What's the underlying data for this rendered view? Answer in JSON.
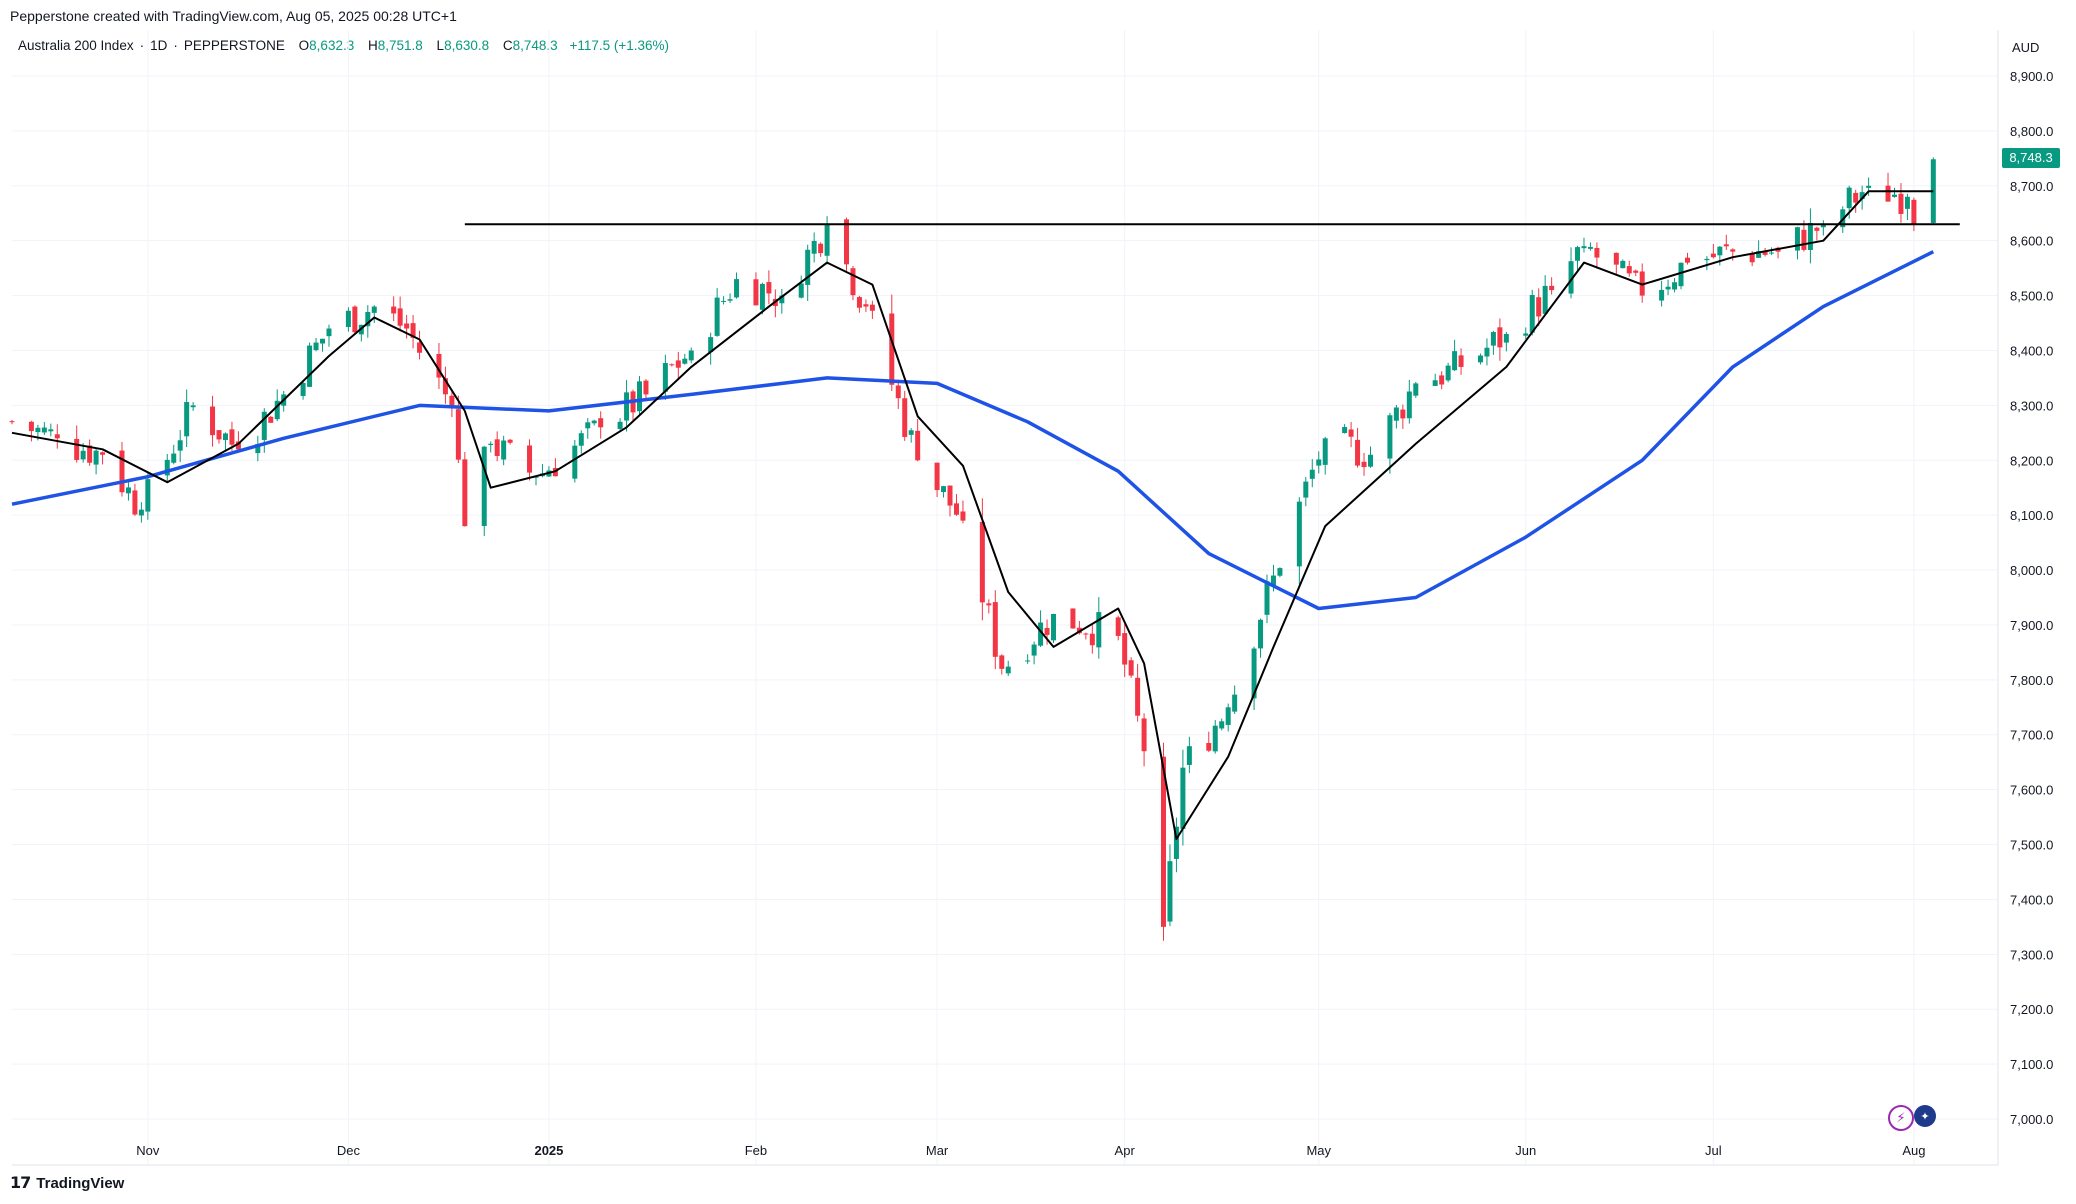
{
  "header": {
    "title": "Pepperstone created with TradingView.com, Aug 05, 2025 00:28 UTC+1"
  },
  "legend": {
    "symbol": "Australia 200 Index",
    "interval": "1D",
    "broker": "PEPPERSTONE",
    "open_label": "O",
    "open": "8,632.3",
    "high_label": "H",
    "high": "8,751.8",
    "low_label": "L",
    "low": "8,630.8",
    "close_label": "C",
    "close": "8,748.3",
    "change": "+117.5 (+1.36%)"
  },
  "price_axis": {
    "currency": "AUD",
    "last_price": "8,748.3",
    "ticks": [
      "8,900.0",
      "8,800.0",
      "8,700.0",
      "8,600.0",
      "8,500.0",
      "8,400.0",
      "8,300.0",
      "8,200.0",
      "8,100.0",
      "8,000.0",
      "7,900.0",
      "7,800.0",
      "7,700.0",
      "7,600.0",
      "7,500.0",
      "7,400.0",
      "7,300.0",
      "7,200.0",
      "7,100.0",
      "7,000.0"
    ]
  },
  "footer": {
    "brand": "TradingView"
  },
  "colors": {
    "up": "#089981",
    "down": "#f23645",
    "ma_fast": "#000000",
    "ma_slow": "#1e53e5",
    "resistance": "#000000",
    "grid": "#f0f3fa"
  },
  "chart_data": {
    "type": "candlestick",
    "y_range": [
      6950,
      8950
    ],
    "x_labels": [
      {
        "label": "Nov",
        "date": "2024-11-01",
        "bold": false
      },
      {
        "label": "Dec",
        "date": "2024-12-02",
        "bold": false
      },
      {
        "label": "2025",
        "date": "2025-01-02",
        "bold": true
      },
      {
        "label": "Feb",
        "date": "2025-02-03",
        "bold": false
      },
      {
        "label": "Mar",
        "date": "2025-03-03",
        "bold": false
      },
      {
        "label": "Apr",
        "date": "2025-04-01",
        "bold": false
      },
      {
        "label": "May",
        "date": "2025-05-01",
        "bold": false
      },
      {
        "label": "Jun",
        "date": "2025-06-02",
        "bold": false
      },
      {
        "label": "Jul",
        "date": "2025-07-01",
        "bold": false
      },
      {
        "label": "Aug",
        "date": "2025-08-01",
        "bold": false
      }
    ],
    "resistance_level": {
      "value": 8630,
      "from": "2024-12-20",
      "to": "2025-08-05"
    },
    "anchors": [
      {
        "date": "2024-10-11",
        "close": 8270
      },
      {
        "date": "2024-10-18",
        "close": 8240
      },
      {
        "date": "2024-10-25",
        "close": 8210
      },
      {
        "date": "2024-10-31",
        "close": 8110
      },
      {
        "date": "2024-11-08",
        "close": 8300
      },
      {
        "date": "2024-11-15",
        "close": 8220
      },
      {
        "date": "2024-11-22",
        "close": 8320
      },
      {
        "date": "2024-11-29",
        "close": 8440
      },
      {
        "date": "2024-12-06",
        "close": 8480
      },
      {
        "date": "2024-12-11",
        "close": 8440
      },
      {
        "date": "2024-12-18",
        "close": 8300
      },
      {
        "date": "2024-12-20",
        "close": 8080
      },
      {
        "date": "2024-12-24",
        "close": 8230
      },
      {
        "date": "2024-12-31",
        "close": 8170
      },
      {
        "date": "2025-01-10",
        "close": 8260
      },
      {
        "date": "2025-01-17",
        "close": 8320
      },
      {
        "date": "2025-01-24",
        "close": 8400
      },
      {
        "date": "2025-01-31",
        "close": 8530
      },
      {
        "date": "2025-02-07",
        "close": 8500
      },
      {
        "date": "2025-02-14",
        "close": 8630
      },
      {
        "date": "2025-02-20",
        "close": 8480
      },
      {
        "date": "2025-02-28",
        "close": 8200
      },
      {
        "date": "2025-03-07",
        "close": 8090
      },
      {
        "date": "2025-03-13",
        "close": 7820
      },
      {
        "date": "2025-03-21",
        "close": 7920
      },
      {
        "date": "2025-03-31",
        "close": 7880
      },
      {
        "date": "2025-04-04",
        "close": 7670
      },
      {
        "date": "2025-04-07",
        "close": 7350
      },
      {
        "date": "2025-04-10",
        "close": 7640
      },
      {
        "date": "2025-04-17",
        "close": 7750
      },
      {
        "date": "2025-04-24",
        "close": 7990
      },
      {
        "date": "2025-05-02",
        "close": 8240
      },
      {
        "date": "2025-05-09",
        "close": 8210
      },
      {
        "date": "2025-05-16",
        "close": 8340
      },
      {
        "date": "2025-05-23",
        "close": 8370
      },
      {
        "date": "2025-05-30",
        "close": 8430
      },
      {
        "date": "2025-06-06",
        "close": 8510
      },
      {
        "date": "2025-06-11",
        "close": 8590
      },
      {
        "date": "2025-06-20",
        "close": 8500
      },
      {
        "date": "2025-06-27",
        "close": 8560
      },
      {
        "date": "2025-07-04",
        "close": 8580
      },
      {
        "date": "2025-07-11",
        "close": 8580
      },
      {
        "date": "2025-07-18",
        "close": 8630
      },
      {
        "date": "2025-07-25",
        "close": 8700
      },
      {
        "date": "2025-07-31",
        "close": 8680
      },
      {
        "date": "2025-08-01",
        "close": 8631
      },
      {
        "date": "2025-08-04",
        "close": 8748.3
      }
    ],
    "ma_fast": [
      {
        "date": "2024-10-11",
        "value": 8250
      },
      {
        "date": "2024-10-25",
        "value": 8220
      },
      {
        "date": "2024-11-04",
        "value": 8160
      },
      {
        "date": "2024-11-15",
        "value": 8230
      },
      {
        "date": "2024-11-29",
        "value": 8390
      },
      {
        "date": "2024-12-06",
        "value": 8460
      },
      {
        "date": "2024-12-13",
        "value": 8420
      },
      {
        "date": "2024-12-20",
        "value": 8290
      },
      {
        "date": "2024-12-24",
        "value": 8150
      },
      {
        "date": "2025-01-03",
        "value": 8180
      },
      {
        "date": "2025-01-14",
        "value": 8260
      },
      {
        "date": "2025-01-24",
        "value": 8370
      },
      {
        "date": "2025-02-05",
        "value": 8480
      },
      {
        "date": "2025-02-14",
        "value": 8560
      },
      {
        "date": "2025-02-21",
        "value": 8520
      },
      {
        "date": "2025-02-28",
        "value": 8280
      },
      {
        "date": "2025-03-07",
        "value": 8190
      },
      {
        "date": "2025-03-14",
        "value": 7960
      },
      {
        "date": "2025-03-21",
        "value": 7860
      },
      {
        "date": "2025-03-31",
        "value": 7930
      },
      {
        "date": "2025-04-04",
        "value": 7830
      },
      {
        "date": "2025-04-09",
        "value": 7510
      },
      {
        "date": "2025-04-17",
        "value": 7660
      },
      {
        "date": "2025-04-24",
        "value": 7860
      },
      {
        "date": "2025-05-02",
        "value": 8080
      },
      {
        "date": "2025-05-16",
        "value": 8230
      },
      {
        "date": "2025-05-30",
        "value": 8370
      },
      {
        "date": "2025-06-11",
        "value": 8560
      },
      {
        "date": "2025-06-20",
        "value": 8520
      },
      {
        "date": "2025-07-04",
        "value": 8570
      },
      {
        "date": "2025-07-18",
        "value": 8600
      },
      {
        "date": "2025-07-25",
        "value": 8690
      },
      {
        "date": "2025-08-04",
        "value": 8690
      }
    ],
    "ma_slow": [
      {
        "date": "2024-10-11",
        "value": 8120
      },
      {
        "date": "2024-11-01",
        "value": 8170
      },
      {
        "date": "2024-11-22",
        "value": 8240
      },
      {
        "date": "2024-12-13",
        "value": 8300
      },
      {
        "date": "2025-01-02",
        "value": 8290
      },
      {
        "date": "2025-01-24",
        "value": 8320
      },
      {
        "date": "2025-02-14",
        "value": 8350
      },
      {
        "date": "2025-03-03",
        "value": 8340
      },
      {
        "date": "2025-03-17",
        "value": 8270
      },
      {
        "date": "2025-03-31",
        "value": 8180
      },
      {
        "date": "2025-04-14",
        "value": 8030
      },
      {
        "date": "2025-05-01",
        "value": 7930
      },
      {
        "date": "2025-05-16",
        "value": 7950
      },
      {
        "date": "2025-06-02",
        "value": 8060
      },
      {
        "date": "2025-06-20",
        "value": 8200
      },
      {
        "date": "2025-07-04",
        "value": 8370
      },
      {
        "date": "2025-07-18",
        "value": 8480
      },
      {
        "date": "2025-08-04",
        "value": 8580
      }
    ]
  }
}
